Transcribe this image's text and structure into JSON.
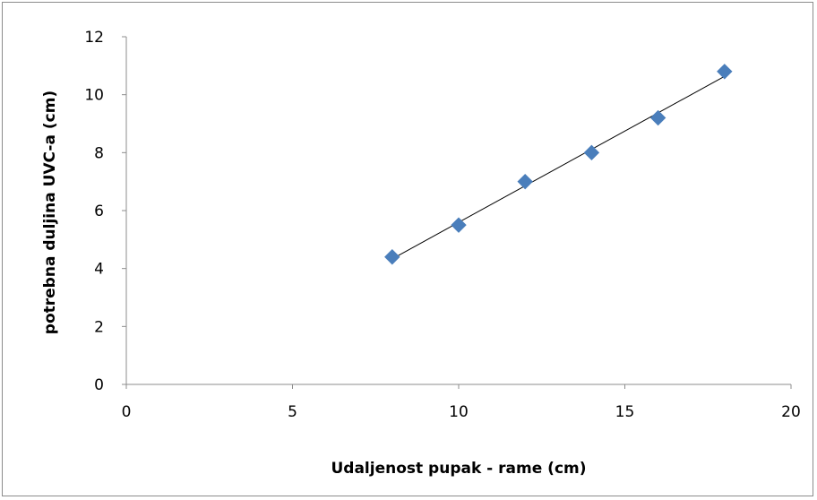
{
  "chart_data": {
    "type": "scatter",
    "title": "",
    "xlabel": "Udaljenost pupak - rame (cm)",
    "ylabel": "potrebna duljina UVC-a (cm)",
    "xlim": [
      0,
      20
    ],
    "ylim": [
      0,
      12
    ],
    "x_ticks": [
      0,
      5,
      10,
      15,
      20
    ],
    "y_ticks": [
      0,
      2,
      4,
      6,
      8,
      10,
      12
    ],
    "grid": false,
    "legend": "none",
    "series": [
      {
        "x": [
          8,
          10,
          12,
          14,
          16,
          18
        ],
        "y": [
          4.4,
          5.5,
          7.0,
          8.0,
          9.2,
          10.8
        ],
        "marker": "diamond",
        "color": "#4a7ebb"
      }
    ],
    "trendline": {
      "type": "linear",
      "x_range": [
        8,
        18
      ],
      "color": "#000000"
    }
  }
}
